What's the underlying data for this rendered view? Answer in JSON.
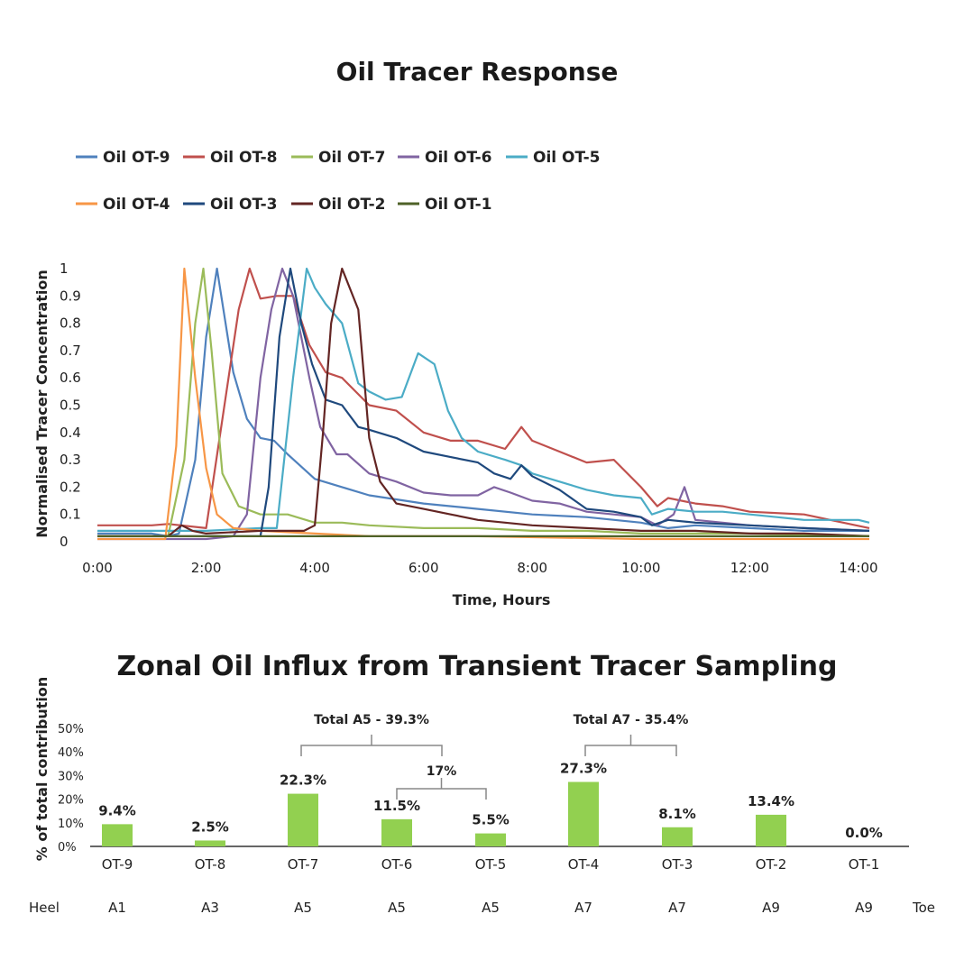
{
  "chart_data": [
    {
      "type": "line",
      "title": "Oil Tracer Response",
      "xlabel": "Time, Hours",
      "ylabel": "Normalised Tracer Concentration",
      "xlim": [
        0,
        14.3
      ],
      "ylim": [
        0,
        1
      ],
      "x_ticks": [
        "0:00",
        "2:00",
        "4:00",
        "6:00",
        "8:00",
        "10:00",
        "12:00",
        "14:00"
      ],
      "y_ticks": [
        "0",
        "0.1",
        "0.2",
        "0.3",
        "0.4",
        "0.5",
        "0.6",
        "0.7",
        "0.8",
        "0.9",
        "1"
      ],
      "grid": false,
      "legend_position": "top",
      "series": [
        {
          "name": "Oil  OT-9",
          "color": "#4f81bd",
          "x": [
            0,
            1,
            1.3,
            1.5,
            1.8,
            2.0,
            2.2,
            2.5,
            2.75,
            3.0,
            3.25,
            3.5,
            4.0,
            4.5,
            5.0,
            6.0,
            7.0,
            8.0,
            9.0,
            10.0,
            10.5,
            11.0,
            12.0,
            13.0,
            14.2
          ],
          "y": [
            0.03,
            0.03,
            0.02,
            0.03,
            0.3,
            0.75,
            1.0,
            0.62,
            0.45,
            0.38,
            0.37,
            0.32,
            0.23,
            0.2,
            0.17,
            0.14,
            0.12,
            0.1,
            0.09,
            0.07,
            0.05,
            0.06,
            0.05,
            0.04,
            0.04
          ]
        },
        {
          "name": "Oil  OT-8",
          "color": "#c0504d",
          "x": [
            0,
            0.5,
            1,
            1.3,
            2.0,
            2.6,
            2.8,
            3.0,
            3.3,
            3.6,
            3.9,
            4.2,
            4.5,
            5.0,
            5.5,
            6.0,
            6.5,
            7.0,
            7.5,
            7.8,
            8.0,
            8.5,
            9.0,
            9.5,
            10.0,
            10.3,
            10.5,
            11.0,
            11.5,
            12.0,
            13.0,
            14.2
          ],
          "y": [
            0.06,
            0.06,
            0.06,
            0.065,
            0.05,
            0.85,
            1.0,
            0.89,
            0.9,
            0.9,
            0.72,
            0.62,
            0.6,
            0.5,
            0.48,
            0.4,
            0.37,
            0.37,
            0.34,
            0.42,
            0.37,
            0.33,
            0.29,
            0.3,
            0.2,
            0.13,
            0.16,
            0.14,
            0.13,
            0.11,
            0.1,
            0.05
          ]
        },
        {
          "name": "Oil  OT-7",
          "color": "#9bbb59",
          "x": [
            0,
            1,
            1.3,
            1.6,
            1.8,
            1.95,
            2.1,
            2.3,
            2.6,
            3.0,
            3.5,
            4.0,
            4.5,
            5.0,
            6.0,
            7.0,
            8.0,
            9.0,
            10.0,
            12.0,
            14.2
          ],
          "y": [
            0.02,
            0.02,
            0.02,
            0.3,
            0.8,
            1.0,
            0.7,
            0.25,
            0.13,
            0.1,
            0.1,
            0.07,
            0.07,
            0.06,
            0.05,
            0.05,
            0.04,
            0.04,
            0.03,
            0.03,
            0.02
          ]
        },
        {
          "name": "Oil  OT-6",
          "color": "#8064a2",
          "x": [
            0,
            1,
            2.0,
            2.5,
            2.75,
            3.0,
            3.2,
            3.4,
            3.6,
            3.9,
            4.1,
            4.4,
            4.6,
            5.0,
            5.5,
            6.0,
            6.5,
            7.0,
            7.3,
            7.6,
            8.0,
            8.5,
            9.0,
            9.5,
            10.0,
            10.3,
            10.6,
            10.8,
            11.0,
            11.5,
            12.0,
            13.0,
            14.2
          ],
          "y": [
            0.01,
            0.01,
            0.01,
            0.02,
            0.1,
            0.6,
            0.85,
            1.0,
            0.9,
            0.6,
            0.42,
            0.32,
            0.32,
            0.25,
            0.22,
            0.18,
            0.17,
            0.17,
            0.2,
            0.18,
            0.15,
            0.14,
            0.11,
            0.1,
            0.09,
            0.06,
            0.1,
            0.2,
            0.08,
            0.07,
            0.06,
            0.05,
            0.04
          ]
        },
        {
          "name": "Oil  OT-5",
          "color": "#4bacc6",
          "x": [
            0,
            1,
            2.0,
            3.0,
            3.3,
            3.6,
            3.85,
            4.0,
            4.2,
            4.5,
            4.8,
            5.0,
            5.3,
            5.6,
            5.9,
            6.2,
            6.45,
            6.7,
            7.0,
            7.5,
            7.8,
            8.0,
            8.5,
            9.0,
            9.5,
            10.0,
            10.2,
            10.5,
            11.0,
            11.5,
            12.0,
            12.5,
            13.0,
            13.5,
            14.0,
            14.2
          ],
          "y": [
            0.04,
            0.04,
            0.04,
            0.05,
            0.05,
            0.6,
            1.0,
            0.93,
            0.87,
            0.8,
            0.58,
            0.55,
            0.52,
            0.53,
            0.69,
            0.65,
            0.48,
            0.38,
            0.33,
            0.3,
            0.28,
            0.25,
            0.22,
            0.19,
            0.17,
            0.16,
            0.1,
            0.12,
            0.11,
            0.11,
            0.1,
            0.09,
            0.08,
            0.08,
            0.08,
            0.07
          ]
        },
        {
          "name": "Oil  OT-4",
          "color": "#f79646",
          "x": [
            0,
            1,
            1.25,
            1.45,
            1.6,
            1.8,
            2.0,
            2.2,
            2.5,
            3.0,
            4.0,
            5.0,
            7.0,
            10.0,
            14.2
          ],
          "y": [
            0.01,
            0.01,
            0.01,
            0.35,
            1.0,
            0.6,
            0.27,
            0.1,
            0.05,
            0.04,
            0.03,
            0.02,
            0.02,
            0.01,
            0.01
          ]
        },
        {
          "name": "Oil  OT-3",
          "color": "#1f497d",
          "x": [
            0,
            1,
            2.5,
            3.0,
            3.15,
            3.35,
            3.55,
            3.75,
            3.95,
            4.2,
            4.5,
            4.8,
            5.0,
            5.5,
            6.0,
            6.5,
            7.0,
            7.3,
            7.6,
            7.8,
            8.0,
            8.5,
            9.0,
            9.5,
            10.0,
            10.2,
            10.5,
            11.0,
            12.0,
            13.0,
            14.2
          ],
          "y": [
            0.02,
            0.02,
            0.02,
            0.02,
            0.2,
            0.75,
            1.0,
            0.8,
            0.65,
            0.52,
            0.5,
            0.42,
            0.41,
            0.38,
            0.33,
            0.31,
            0.29,
            0.25,
            0.23,
            0.28,
            0.24,
            0.19,
            0.12,
            0.11,
            0.09,
            0.06,
            0.08,
            0.07,
            0.06,
            0.05,
            0.04
          ]
        },
        {
          "name": "Oil  OT-2",
          "color": "#632523",
          "x": [
            0,
            1,
            1.3,
            1.55,
            1.75,
            2.0,
            3.0,
            3.8,
            4.0,
            4.15,
            4.3,
            4.5,
            4.8,
            5.0,
            5.2,
            5.5,
            6.0,
            6.5,
            7.0,
            7.5,
            8.0,
            9.0,
            10.0,
            11.0,
            12.0,
            13.0,
            14.2
          ],
          "y": [
            0.02,
            0.02,
            0.02,
            0.06,
            0.04,
            0.03,
            0.04,
            0.04,
            0.06,
            0.4,
            0.8,
            1.0,
            0.85,
            0.38,
            0.22,
            0.14,
            0.12,
            0.1,
            0.08,
            0.07,
            0.06,
            0.05,
            0.04,
            0.04,
            0.03,
            0.03,
            0.02
          ]
        },
        {
          "name": "Oil  OT-1",
          "color": "#4f6228",
          "x": [
            0,
            2.0,
            4.0,
            6.0,
            8.0,
            10.0,
            12.0,
            14.2
          ],
          "y": [
            0.02,
            0.02,
            0.02,
            0.02,
            0.02,
            0.02,
            0.02,
            0.02
          ]
        }
      ]
    },
    {
      "type": "bar",
      "title": "Zonal Oil Influx from Transient Tracer Sampling",
      "ylabel": "% of total contribution",
      "ylim": [
        0,
        0.5
      ],
      "y_ticks": [
        "0%",
        "10%",
        "20%",
        "30%",
        "40%",
        "50%"
      ],
      "color": "#92d050",
      "categories": [
        "OT-9",
        "OT-8",
        "OT-7",
        "OT-6",
        "OT-5",
        "OT-4",
        "OT-3",
        "OT-2",
        "OT-1"
      ],
      "values": [
        0.094,
        0.025,
        0.223,
        0.115,
        0.055,
        0.273,
        0.081,
        0.134,
        0.0
      ],
      "value_labels": [
        "9.4%",
        "2.5%",
        "22.3%",
        "11.5%",
        "5.5%",
        "27.3%",
        "8.1%",
        "13.4%",
        "0.0%"
      ],
      "zones": [
        "A1",
        "A3",
        "A5",
        "A5",
        "A5",
        "A7",
        "A7",
        "A9",
        "A9"
      ],
      "heel_label": "Heel",
      "toe_label": "Toe",
      "brackets": [
        {
          "label": "Total A5 - 39.3%",
          "from": 2,
          "to": 3
        },
        {
          "label": "17%",
          "from": 3,
          "to": 4
        },
        {
          "label": "Total A7 - 35.4%",
          "from": 5,
          "to": 6
        }
      ]
    }
  ]
}
